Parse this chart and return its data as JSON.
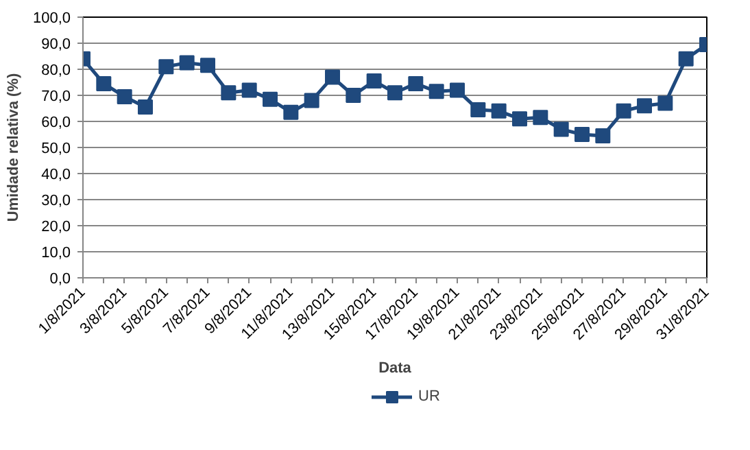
{
  "chart_data": {
    "type": "line",
    "xlabel": "Data",
    "ylabel": "Umidade relativa (%)",
    "categories": [
      "1/8/2021",
      null,
      "3/8/2021",
      null,
      "5/8/2021",
      null,
      "7/8/2021",
      null,
      "9/8/2021",
      null,
      "11/8/2021",
      null,
      "13/8/2021",
      null,
      "15/8/2021",
      null,
      "17/8/2021",
      null,
      "19/8/2021",
      null,
      "21/8/2021",
      null,
      "23/8/2021",
      null,
      "25/8/2021",
      null,
      "27/8/2021",
      null,
      "29/8/2021",
      null,
      "31/8/2021"
    ],
    "series": [
      {
        "name": "UR",
        "color": "#1f497d",
        "values": [
          84,
          74.5,
          69.5,
          65.5,
          81,
          82.5,
          81.5,
          71,
          72,
          68.5,
          63.5,
          68,
          77,
          70,
          75.5,
          71,
          74.5,
          71.5,
          72,
          64.5,
          64,
          61,
          61.5,
          57,
          55,
          54.5,
          64,
          66,
          67,
          84,
          89.5
        ]
      }
    ],
    "ylim": [
      0,
      100
    ],
    "yticks": [
      {
        "value": 0,
        "label": "0,0"
      },
      {
        "value": 10,
        "label": "10,0"
      },
      {
        "value": 20,
        "label": "20,0"
      },
      {
        "value": 30,
        "label": "30,0"
      },
      {
        "value": 40,
        "label": "40,0"
      },
      {
        "value": 50,
        "label": "50,0"
      },
      {
        "value": 60,
        "label": "60,0"
      },
      {
        "value": 70,
        "label": "70,0"
      },
      {
        "value": 80,
        "label": "80,0"
      },
      {
        "value": 90,
        "label": "90,0"
      },
      {
        "value": 100,
        "label": "100,0"
      }
    ],
    "grid": "y",
    "legend": "bottom",
    "marker": "square",
    "line_style": "solid"
  }
}
